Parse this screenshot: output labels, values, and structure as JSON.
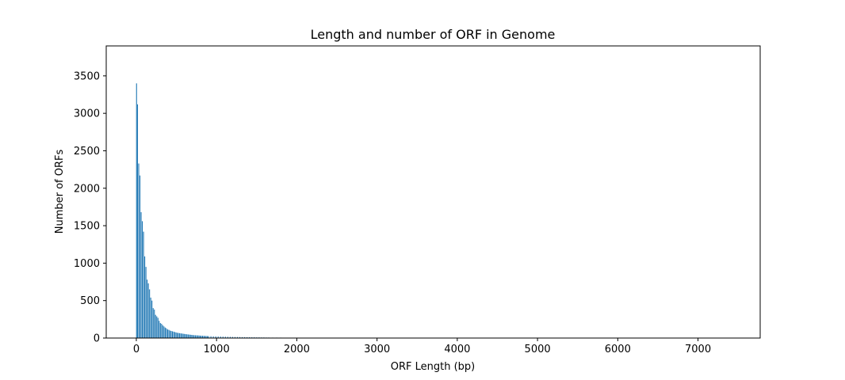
{
  "chart_data": {
    "type": "bar",
    "title": "Length and number of ORF in Genome",
    "xlabel": "ORF Length (bp)",
    "ylabel": "Number of ORFs",
    "xlim": [
      -375,
      7775
    ],
    "ylim": [
      0,
      3900
    ],
    "xticks": [
      0,
      1000,
      2000,
      3000,
      4000,
      5000,
      6000,
      7000
    ],
    "yticks": [
      0,
      500,
      1000,
      1500,
      2000,
      2500,
      3000,
      3500
    ],
    "xtick_labels": [
      "0",
      "1000",
      "2000",
      "3000",
      "4000",
      "5000",
      "6000",
      "7000"
    ],
    "ytick_labels": [
      "0",
      "500",
      "1000",
      "1500",
      "2000",
      "2500",
      "3000",
      "3500"
    ],
    "grid": false,
    "legend": "none",
    "bar_color": "#1f77b4",
    "x": [
      3,
      15,
      30,
      45,
      60,
      75,
      90,
      105,
      120,
      135,
      150,
      165,
      180,
      195,
      210,
      225,
      240,
      255,
      270,
      285,
      300,
      315,
      330,
      345,
      360,
      375,
      390,
      405,
      420,
      435,
      450,
      465,
      480,
      495,
      510,
      525,
      540,
      555,
      570,
      585,
      600,
      615,
      630,
      645,
      660,
      675,
      690,
      705,
      720,
      735,
      750,
      765,
      780,
      795,
      810,
      825,
      840,
      855,
      870,
      885,
      900,
      930,
      960,
      990,
      1020,
      1050,
      1080,
      1110,
      1140,
      1170,
      1200,
      1230,
      1260,
      1290,
      1320,
      1350,
      1380,
      1410,
      1440,
      1470,
      1500,
      1530,
      1560,
      1590,
      1620,
      1650,
      1700,
      1750,
      1800,
      1850,
      1900,
      1950,
      2000,
      2050,
      2100,
      2200,
      2250,
      2300
    ],
    "values": [
      3400,
      3120,
      2330,
      2170,
      1680,
      1560,
      1420,
      1090,
      950,
      780,
      730,
      650,
      540,
      500,
      400,
      380,
      310,
      290,
      270,
      230,
      200,
      190,
      170,
      155,
      140,
      130,
      115,
      110,
      100,
      95,
      90,
      85,
      80,
      75,
      70,
      68,
      65,
      62,
      60,
      57,
      55,
      52,
      50,
      48,
      46,
      44,
      42,
      40,
      38,
      37,
      36,
      35,
      34,
      32,
      31,
      30,
      29,
      28,
      27,
      26,
      25,
      24,
      23,
      22,
      21,
      20,
      19,
      18,
      17,
      16,
      15,
      14,
      14,
      13,
      12,
      12,
      11,
      11,
      10,
      10,
      9,
      9,
      8,
      8,
      7,
      7,
      6,
      6,
      6,
      5,
      5,
      5,
      4,
      4,
      4,
      3,
      3,
      3
    ]
  }
}
